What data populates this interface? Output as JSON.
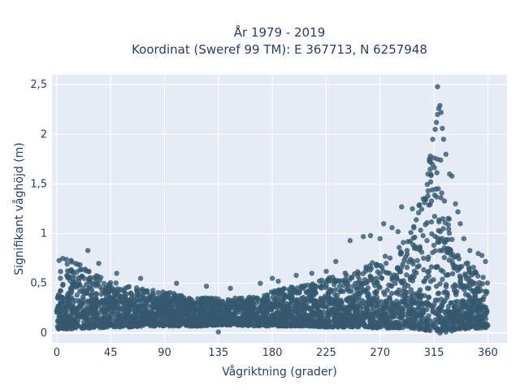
{
  "chart_data": {
    "type": "scatter",
    "title": "År 1979 - 2019",
    "subtitle": "Koordinat (Sweref 99 TM): E 367713, N 6257948",
    "xlabel": "Vågriktning (grader)",
    "ylabel": "Signifikant våghöjd (m)",
    "xlim": [
      -4,
      376
    ],
    "ylim": [
      -0.1,
      2.6
    ],
    "xticks": [
      0,
      45,
      90,
      135,
      180,
      225,
      270,
      315,
      360
    ],
    "xtick_labels": [
      "0",
      "45",
      "90",
      "135",
      "180",
      "225",
      "270",
      "315",
      "360"
    ],
    "yticks": [
      0,
      0.5,
      1,
      1.5,
      2,
      2.5
    ],
    "ytick_labels": [
      "0",
      "0,5",
      "1",
      "1,5",
      "2",
      "2,5"
    ],
    "grid": true,
    "colors": {
      "plot_bg": "#e5ecf6",
      "grid": "#ffffff",
      "marker": "#34596e",
      "text": "#2a3f5f"
    },
    "envelope": {
      "x": [
        0,
        10,
        20,
        30,
        45,
        60,
        75,
        90,
        105,
        120,
        135,
        150,
        165,
        180,
        195,
        210,
        225,
        240,
        255,
        270,
        285,
        295,
        300,
        305,
        310,
        315,
        320,
        325,
        330,
        335,
        340,
        345,
        350,
        355,
        360
      ],
      "upper": [
        0.65,
        0.72,
        0.7,
        0.62,
        0.52,
        0.47,
        0.44,
        0.42,
        0.38,
        0.35,
        0.33,
        0.34,
        0.37,
        0.42,
        0.46,
        0.5,
        0.55,
        0.6,
        0.65,
        0.75,
        0.85,
        1.0,
        1.2,
        1.45,
        1.7,
        1.95,
        1.8,
        1.35,
        1.0,
        0.85,
        0.75,
        0.7,
        0.65,
        0.6,
        0.55
      ],
      "lower": [
        0.04,
        0.04,
        0.05,
        0.05,
        0.06,
        0.06,
        0.07,
        0.07,
        0.07,
        0.07,
        0.08,
        0.08,
        0.07,
        0.07,
        0.07,
        0.07,
        0.06,
        0.06,
        0.06,
        0.05,
        0.05,
        0.05,
        0.04,
        0.03,
        0.02,
        0.02,
        0.02,
        0.02,
        0.03,
        0.04,
        0.04,
        0.05,
        0.05,
        0.05,
        0.05
      ]
    },
    "outliers": [
      [
        2,
        0.73
      ],
      [
        5,
        0.75
      ],
      [
        8,
        0.74
      ],
      [
        12,
        0.73
      ],
      [
        26,
        0.83
      ],
      [
        35,
        0.7
      ],
      [
        50,
        0.6
      ],
      [
        70,
        0.55
      ],
      [
        100,
        0.5
      ],
      [
        125,
        0.47
      ],
      [
        135,
        0.01
      ],
      [
        145,
        0.45
      ],
      [
        170,
        0.5
      ],
      [
        180,
        0.55
      ],
      [
        185,
        0.52
      ],
      [
        200,
        0.58
      ],
      [
        213,
        0.6
      ],
      [
        225,
        0.62
      ],
      [
        233,
        0.72
      ],
      [
        245,
        0.93
      ],
      [
        256,
        0.97
      ],
      [
        262,
        0.98
      ],
      [
        270,
        0.95
      ],
      [
        273,
        1.1
      ],
      [
        280,
        1.06
      ],
      [
        285,
        1.02
      ],
      [
        288,
        1.27
      ],
      [
        297,
        1.25
      ],
      [
        303,
        1.29
      ],
      [
        306,
        1.35
      ],
      [
        310,
        1.38
      ],
      [
        310,
        1.6
      ],
      [
        312,
        1.78
      ],
      [
        314,
        1.95
      ],
      [
        316,
        2.05
      ],
      [
        317,
        2.12
      ],
      [
        318,
        2.2
      ],
      [
        319,
        2.26
      ],
      [
        320,
        2.29
      ],
      [
        318,
        2.48
      ],
      [
        321,
        2.22
      ],
      [
        322,
        2.06
      ],
      [
        323,
        1.95
      ],
      [
        325,
        1.8
      ],
      [
        328,
        1.6
      ],
      [
        330,
        1.58
      ],
      [
        333,
        1.3
      ],
      [
        335,
        1.22
      ],
      [
        337,
        1.1
      ],
      [
        340,
        0.95
      ],
      [
        345,
        0.83
      ],
      [
        352,
        0.8
      ],
      [
        355,
        0.78
      ],
      [
        358,
        0.72
      ],
      [
        320,
        0.0
      ],
      [
        325,
        0.01
      ],
      [
        330,
        0.02
      ]
    ],
    "n_points_drawn": 2600
  }
}
